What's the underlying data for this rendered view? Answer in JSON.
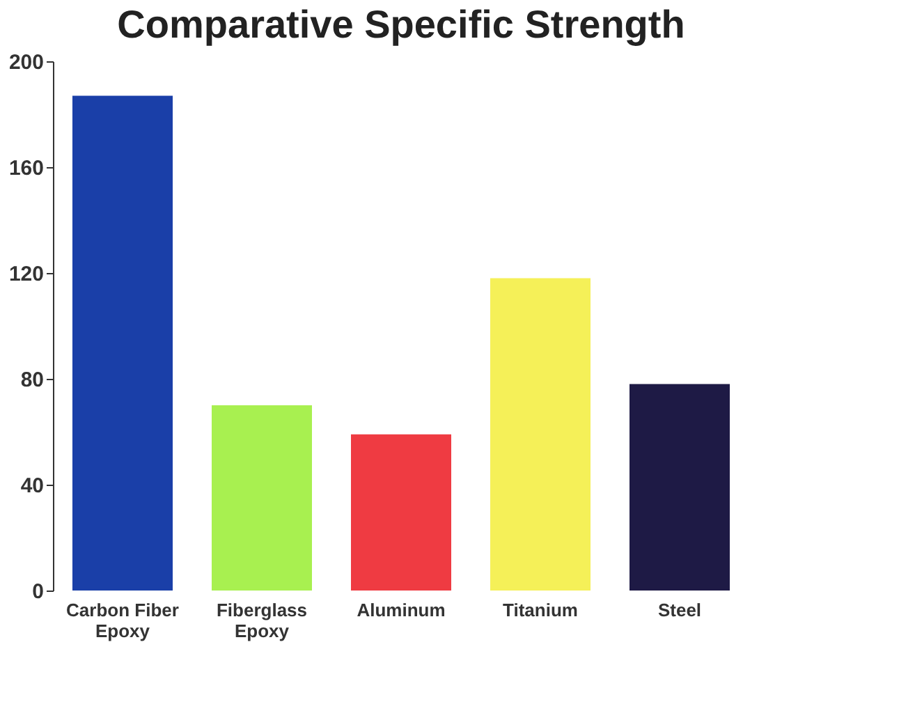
{
  "chart_data": {
    "type": "bar",
    "title": "Comparative Specific Strength",
    "categories": [
      "Carbon Fiber Epoxy",
      "Fiberglass Epoxy",
      "Aluminum",
      "Titanium",
      "Steel"
    ],
    "values": [
      187,
      70,
      59,
      118,
      78
    ],
    "colors": [
      "#1a3fa8",
      "#a8f050",
      "#ef3b42",
      "#f5f058",
      "#1e1a45"
    ],
    "ylim": [
      0,
      200
    ],
    "yticks": [
      0,
      40,
      80,
      120,
      160,
      200
    ],
    "grid": false
  }
}
